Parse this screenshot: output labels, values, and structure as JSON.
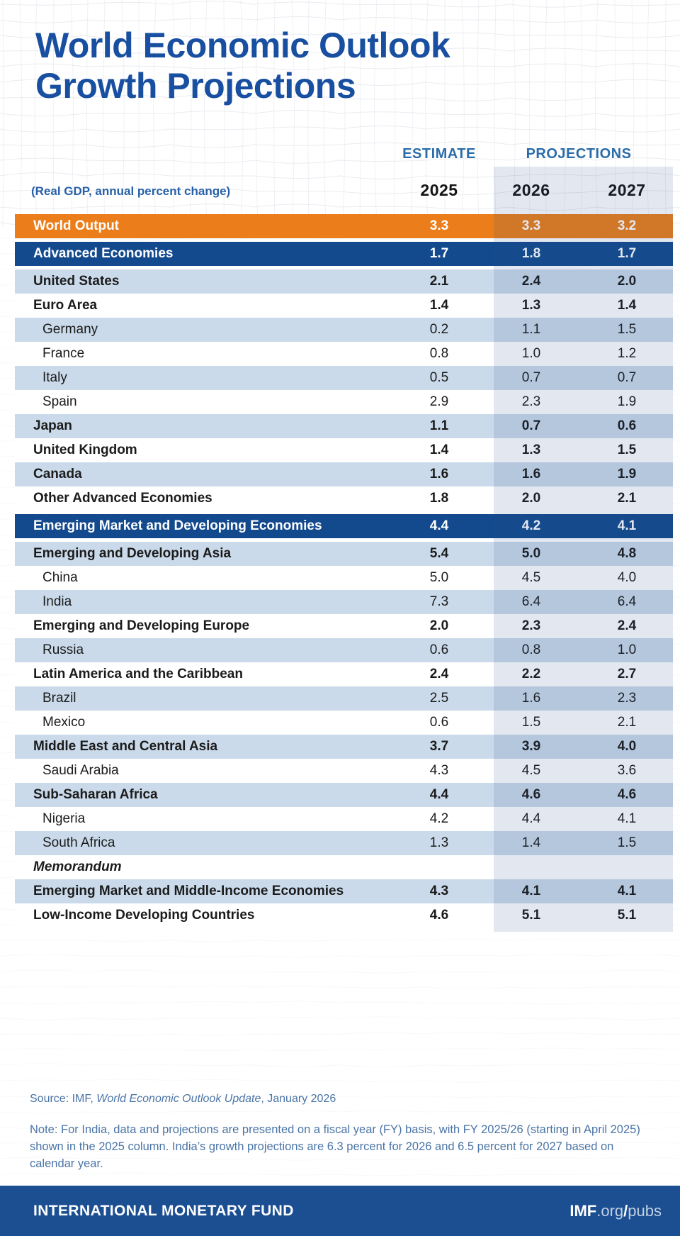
{
  "title": {
    "line1": "World Economic Outlook",
    "line2": "Growth Projections"
  },
  "chart_data": {
    "type": "table",
    "title": "World Economic Outlook Growth Projections",
    "unit_label": "(Real GDP, annual percent change)",
    "column_groups": {
      "estimate": "ESTIMATE",
      "projections": "PROJECTIONS"
    },
    "columns": [
      "2025",
      "2026",
      "2027"
    ],
    "rows": [
      {
        "label": "World Output",
        "values": [
          "3.3",
          "3.3",
          "3.2"
        ],
        "style": "orange",
        "bold": true,
        "italic": false,
        "indent": false
      },
      {
        "label": "Advanced Economies",
        "values": [
          "1.7",
          "1.8",
          "1.7"
        ],
        "style": "navy",
        "bold": true,
        "italic": false,
        "indent": false
      },
      {
        "label": "United States",
        "values": [
          "2.1",
          "2.4",
          "2.0"
        ],
        "style": "shade",
        "bold": true,
        "italic": false,
        "indent": false
      },
      {
        "label": "Euro Area",
        "values": [
          "1.4",
          "1.3",
          "1.4"
        ],
        "style": "plain",
        "bold": true,
        "italic": false,
        "indent": false
      },
      {
        "label": "Germany",
        "values": [
          "0.2",
          "1.1",
          "1.5"
        ],
        "style": "shade",
        "bold": false,
        "italic": false,
        "indent": true
      },
      {
        "label": "France",
        "values": [
          "0.8",
          "1.0",
          "1.2"
        ],
        "style": "plain",
        "bold": false,
        "italic": false,
        "indent": true
      },
      {
        "label": "Italy",
        "values": [
          "0.5",
          "0.7",
          "0.7"
        ],
        "style": "shade",
        "bold": false,
        "italic": false,
        "indent": true
      },
      {
        "label": "Spain",
        "values": [
          "2.9",
          "2.3",
          "1.9"
        ],
        "style": "plain",
        "bold": false,
        "italic": false,
        "indent": true
      },
      {
        "label": "Japan",
        "values": [
          "1.1",
          "0.7",
          "0.6"
        ],
        "style": "shade",
        "bold": true,
        "italic": false,
        "indent": false
      },
      {
        "label": "United Kingdom",
        "values": [
          "1.4",
          "1.3",
          "1.5"
        ],
        "style": "plain",
        "bold": true,
        "italic": false,
        "indent": false
      },
      {
        "label": "Canada",
        "values": [
          "1.6",
          "1.6",
          "1.9"
        ],
        "style": "shade",
        "bold": true,
        "italic": false,
        "indent": false
      },
      {
        "label": "Other Advanced Economies",
        "values": [
          "1.8",
          "2.0",
          "2.1"
        ],
        "style": "plain",
        "bold": true,
        "italic": false,
        "indent": false
      },
      {
        "label": "Emerging Market and Developing Economies",
        "values": [
          "4.4",
          "4.2",
          "4.1"
        ],
        "style": "navy",
        "bold": true,
        "italic": false,
        "indent": false
      },
      {
        "label": "Emerging and Developing Asia",
        "values": [
          "5.4",
          "5.0",
          "4.8"
        ],
        "style": "shade",
        "bold": true,
        "italic": false,
        "indent": false
      },
      {
        "label": "China",
        "values": [
          "5.0",
          "4.5",
          "4.0"
        ],
        "style": "plain",
        "bold": false,
        "italic": false,
        "indent": true
      },
      {
        "label": "India",
        "values": [
          "7.3",
          "6.4",
          "6.4"
        ],
        "style": "shade",
        "bold": false,
        "italic": false,
        "indent": true
      },
      {
        "label": "Emerging and Developing Europe",
        "values": [
          "2.0",
          "2.3",
          "2.4"
        ],
        "style": "plain",
        "bold": true,
        "italic": false,
        "indent": false
      },
      {
        "label": "Russia",
        "values": [
          "0.6",
          "0.8",
          "1.0"
        ],
        "style": "shade",
        "bold": false,
        "italic": false,
        "indent": true
      },
      {
        "label": "Latin America and the Caribbean",
        "values": [
          "2.4",
          "2.2",
          "2.7"
        ],
        "style": "plain",
        "bold": true,
        "italic": false,
        "indent": false
      },
      {
        "label": "Brazil",
        "values": [
          "2.5",
          "1.6",
          "2.3"
        ],
        "style": "shade",
        "bold": false,
        "italic": false,
        "indent": true
      },
      {
        "label": "Mexico",
        "values": [
          "0.6",
          "1.5",
          "2.1"
        ],
        "style": "plain",
        "bold": false,
        "italic": false,
        "indent": true
      },
      {
        "label": "Middle East and Central Asia",
        "values": [
          "3.7",
          "3.9",
          "4.0"
        ],
        "style": "shade",
        "bold": true,
        "italic": false,
        "indent": false
      },
      {
        "label": "Saudi Arabia",
        "values": [
          "4.3",
          "4.5",
          "3.6"
        ],
        "style": "plain",
        "bold": false,
        "italic": false,
        "indent": true
      },
      {
        "label": "Sub-Saharan Africa",
        "values": [
          "4.4",
          "4.6",
          "4.6"
        ],
        "style": "shade",
        "bold": true,
        "italic": false,
        "indent": false
      },
      {
        "label": "Nigeria",
        "values": [
          "4.2",
          "4.4",
          "4.1"
        ],
        "style": "plain",
        "bold": false,
        "italic": false,
        "indent": true
      },
      {
        "label": "South Africa",
        "values": [
          "1.3",
          "1.4",
          "1.5"
        ],
        "style": "shade",
        "bold": false,
        "italic": false,
        "indent": true
      },
      {
        "label": "Memorandum",
        "values": [
          "",
          "",
          ""
        ],
        "style": "plain",
        "bold": true,
        "italic": true,
        "indent": false
      },
      {
        "label": "Emerging Market and Middle-Income Economies",
        "values": [
          "4.3",
          "4.1",
          "4.1"
        ],
        "style": "shade",
        "bold": true,
        "italic": false,
        "indent": false
      },
      {
        "label": "Low-Income Developing Countries",
        "values": [
          "4.6",
          "5.1",
          "5.1"
        ],
        "style": "plain",
        "bold": true,
        "italic": false,
        "indent": false
      }
    ]
  },
  "footnotes": {
    "source": {
      "prefix": "Source: IMF, ",
      "report_title": "World Economic Outlook Update",
      "suffix": ", January 2026"
    },
    "note": "Note: For India, data and projections are presented on a fiscal year (FY) basis, with FY 2025/26 (starting in April 2025) shown in the 2025 column. India’s growth projections are 6.3 percent for 2026 and 6.5 percent for 2027 based on calendar year."
  },
  "footer": {
    "org_name": "INTERNATIONAL MONETARY FUND",
    "site": {
      "brand": "IMF",
      "dot_org": ".org",
      "slash": "/",
      "pubs": "pubs"
    }
  },
  "colors": {
    "title_blue": "#184FA0",
    "header_label_blue": "#2B6CA9",
    "unit_blue": "#2860A8",
    "accent_orange": "#EB7E1A",
    "row_navy": "#134A8E",
    "row_light": "#CADAEA",
    "note_blue": "#4A74A6",
    "footer_blue": "#1C4F92"
  }
}
